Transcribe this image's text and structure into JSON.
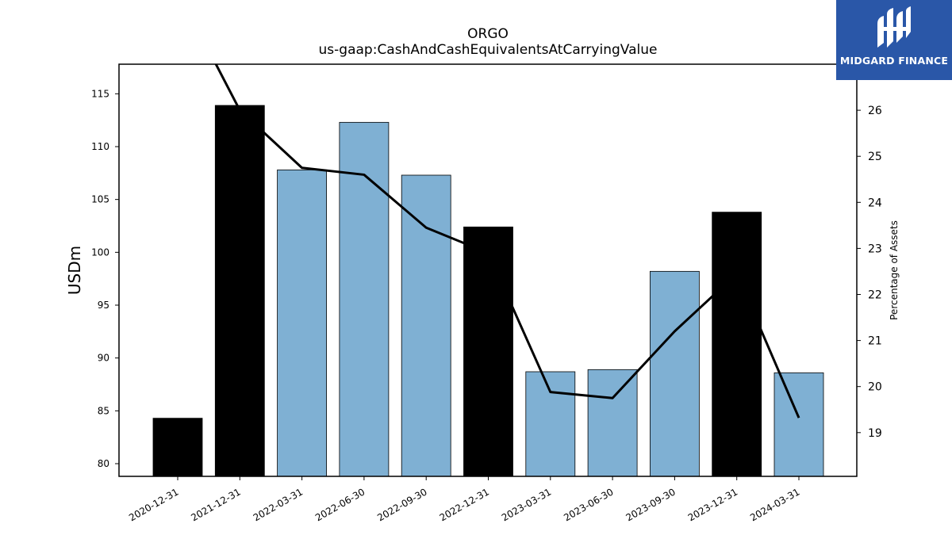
{
  "chart_data": {
    "type": "bar",
    "title": "ORGO",
    "subtitle": "us-gaap:CashAndCashEquivalentsAtCarryingValue",
    "ylabel": "USDm",
    "y2label": "Percentage of Assets",
    "categories": [
      "2020-12-31",
      "2021-12-31",
      "2022-03-31",
      "2022-06-30",
      "2022-09-30",
      "2022-12-31",
      "2023-03-31",
      "2023-06-30",
      "2023-09-30",
      "2023-12-31",
      "2024-03-31"
    ],
    "series": [
      {
        "kind": "bar",
        "axis": "left",
        "values": [
          84.3,
          113.9,
          107.8,
          112.3,
          107.3,
          102.4,
          88.7,
          88.9,
          98.2,
          103.8,
          88.6
        ],
        "colors": [
          "#000000",
          "#000000",
          "#7fb0d3",
          "#7fb0d3",
          "#7fb0d3",
          "#000000",
          "#7fb0d3",
          "#7fb0d3",
          "#7fb0d3",
          "#000000",
          "#7fb0d3"
        ]
      },
      {
        "kind": "line",
        "axis": "right",
        "color": "#000000",
        "values": [
          28.6,
          26.0,
          24.75,
          24.6,
          23.45,
          22.9,
          19.88,
          19.75,
          21.2,
          22.45,
          19.32
        ]
      }
    ],
    "ylim": [
      78.8,
      117.8
    ],
    "y2lim": [
      18.05,
      27.0
    ],
    "yticks": [
      "80",
      "85",
      "90",
      "95",
      "100",
      "105",
      "110",
      "115"
    ],
    "y2ticks": [
      "19",
      "20",
      "21",
      "22",
      "23",
      "24",
      "25",
      "26"
    ],
    "grid": false
  },
  "logo": {
    "text": "MIDGARD FINANCE",
    "color": "#2a57a8"
  }
}
